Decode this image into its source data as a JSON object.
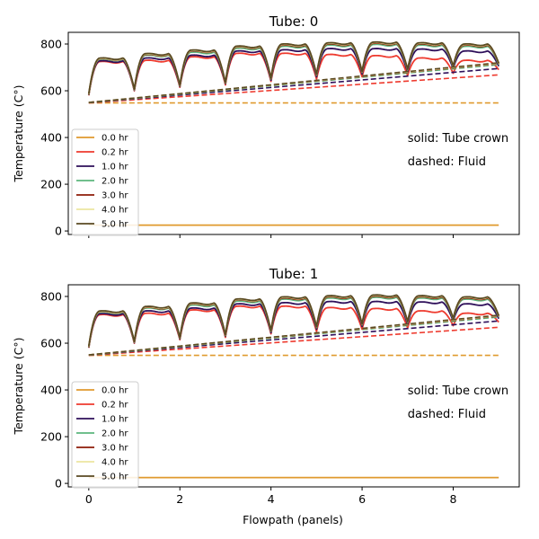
{
  "chart_data": [
    {
      "type": "line",
      "title": "Tube: 0",
      "xlabel": "",
      "ylabel": "Temperature (C°)",
      "xlim": [
        -0.45,
        9.45
      ],
      "ylim": [
        -15,
        850
      ],
      "xticks": [
        0,
        2,
        4,
        6,
        8
      ],
      "xticklabels": [
        "",
        "",
        "",
        "",
        ""
      ],
      "yticks": [
        0,
        200,
        400,
        600,
        800
      ],
      "yticklabels": [
        "0",
        "200",
        "400",
        "600",
        "800"
      ],
      "annotations": [
        "solid: Tube crown",
        "dashed: Fluid"
      ],
      "legend": "center-left",
      "grid": false,
      "series": [
        {
          "name": "0.0 hr",
          "color": "#e09a2e",
          "solid": {
            "x": [
              0,
              9
            ],
            "y": [
              25,
              25
            ]
          },
          "dashed": {
            "x": [
              0,
              9
            ],
            "y": [
              548,
              548
            ]
          }
        },
        {
          "name": "0.2 hr",
          "color": "#ee3a2e",
          "solid": {
            "peak": [
              725,
              730,
              745,
              760,
              760,
              755,
              750,
              740,
              730
            ],
            "trough": [
              600,
              615,
              625,
              640,
              650,
              660,
              665,
              675,
              690
            ],
            "start": 580
          },
          "dashed": {
            "x": [
              0,
              9
            ],
            "y": [
              548,
              668
            ]
          }
        },
        {
          "name": "1.0 hr",
          "color": "#2e0f5a",
          "solid": {
            "peak": [
              728,
              740,
              752,
              770,
              775,
              780,
              780,
              778,
              770
            ],
            "trough": [
              602,
              618,
              630,
              645,
              660,
              672,
              680,
              695,
              705
            ],
            "start": 582
          },
          "dashed": {
            "x": [
              0,
              9
            ],
            "y": [
              549,
              695
            ]
          }
        },
        {
          "name": "2.0 hr",
          "color": "#5bb67d",
          "solid": {
            "peak": [
              735,
              752,
              765,
              782,
              790,
              795,
              798,
              795,
              790
            ],
            "trough": [
              604,
              620,
              632,
              650,
              666,
              678,
              688,
              702,
              712
            ],
            "start": 583
          },
          "dashed": {
            "x": [
              0,
              9
            ],
            "y": [
              549,
              712
            ]
          }
        },
        {
          "name": "3.0 hr",
          "color": "#8e1c08",
          "solid": {
            "peak": [
              737,
              755,
              770,
              787,
              795,
              800,
              803,
              800,
              795
            ],
            "trough": [
              605,
              621,
              633,
              652,
              668,
              680,
              690,
              704,
              715
            ],
            "start": 584
          },
          "dashed": {
            "x": [
              0,
              9
            ],
            "y": [
              550,
              716
            ]
          }
        },
        {
          "name": "4.0 hr",
          "color": "#ece6a0",
          "solid": {
            "peak": [
              738,
              757,
              772,
              789,
              798,
              803,
              806,
              803,
              798
            ],
            "trough": [
              606,
              622,
              634,
              653,
              669,
              681,
              691,
              705,
              717
            ],
            "start": 585
          },
          "dashed": {
            "x": [
              0,
              9
            ],
            "y": [
              550,
              718
            ]
          }
        },
        {
          "name": "5.0 hr",
          "color": "#5a4a22",
          "solid": {
            "peak": [
              740,
              759,
              774,
              791,
              800,
              805,
              808,
              805,
              800
            ],
            "trough": [
              607,
              623,
              635,
              654,
              670,
              682,
              692,
              706,
              718
            ],
            "start": 586
          },
          "dashed": {
            "x": [
              0,
              9
            ],
            "y": [
              550,
              720
            ]
          }
        }
      ]
    },
    {
      "type": "line",
      "title": "Tube: 1",
      "xlabel": "Flowpath (panels)",
      "ylabel": "Temperature (C°)",
      "xlim": [
        -0.45,
        9.45
      ],
      "ylim": [
        -15,
        850
      ],
      "xticks": [
        0,
        2,
        4,
        6,
        8
      ],
      "xticklabels": [
        "0",
        "2",
        "4",
        "6",
        "8"
      ],
      "yticks": [
        0,
        200,
        400,
        600,
        800
      ],
      "yticklabels": [
        "0",
        "200",
        "400",
        "600",
        "800"
      ],
      "annotations": [
        "solid: Tube crown",
        "dashed: Fluid"
      ],
      "legend": "center-left",
      "grid": false,
      "series": [
        {
          "name": "0.0 hr",
          "color": "#e09a2e",
          "solid": {
            "x": [
              0,
              9
            ],
            "y": [
              25,
              25
            ]
          },
          "dashed": {
            "x": [
              0,
              9
            ],
            "y": [
              548,
              548
            ]
          }
        },
        {
          "name": "0.2 hr",
          "color": "#ee3a2e",
          "solid": {
            "peak": [
              722,
              728,
              742,
              758,
              758,
              752,
              748,
              738,
              728
            ],
            "trough": [
              600,
              615,
              625,
              640,
              650,
              660,
              665,
              675,
              690
            ],
            "start": 580
          },
          "dashed": {
            "x": [
              0,
              9
            ],
            "y": [
              548,
              668
            ]
          }
        },
        {
          "name": "1.0 hr",
          "color": "#2e0f5a",
          "solid": {
            "peak": [
              726,
              738,
              750,
              768,
              773,
              778,
              778,
              776,
              768
            ],
            "trough": [
              602,
              618,
              630,
              645,
              660,
              672,
              680,
              695,
              705
            ],
            "start": 582
          },
          "dashed": {
            "x": [
              0,
              9
            ],
            "y": [
              549,
              695
            ]
          }
        },
        {
          "name": "2.0 hr",
          "color": "#5bb67d",
          "solid": {
            "peak": [
              733,
              750,
              763,
              780,
              788,
              793,
              796,
              793,
              788
            ],
            "trough": [
              604,
              620,
              632,
              650,
              666,
              678,
              688,
              702,
              712
            ],
            "start": 583
          },
          "dashed": {
            "x": [
              0,
              9
            ],
            "y": [
              549,
              712
            ]
          }
        },
        {
          "name": "3.0 hr",
          "color": "#8e1c08",
          "solid": {
            "peak": [
              735,
              753,
              768,
              785,
              793,
              798,
              801,
              798,
              793
            ],
            "trough": [
              605,
              621,
              633,
              652,
              668,
              680,
              690,
              704,
              715
            ],
            "start": 584
          },
          "dashed": {
            "x": [
              0,
              9
            ],
            "y": [
              550,
              716
            ]
          }
        },
        {
          "name": "4.0 hr",
          "color": "#ece6a0",
          "solid": {
            "peak": [
              736,
              755,
              770,
              787,
              796,
              801,
              804,
              801,
              796
            ],
            "trough": [
              606,
              622,
              634,
              653,
              669,
              681,
              691,
              705,
              717
            ],
            "start": 585
          },
          "dashed": {
            "x": [
              0,
              9
            ],
            "y": [
              550,
              718
            ]
          }
        },
        {
          "name": "5.0 hr",
          "color": "#5a4a22",
          "solid": {
            "peak": [
              738,
              757,
              772,
              789,
              798,
              803,
              806,
              803,
              798
            ],
            "trough": [
              607,
              623,
              635,
              654,
              670,
              682,
              692,
              706,
              718
            ],
            "start": 586
          },
          "dashed": {
            "x": [
              0,
              9
            ],
            "y": [
              550,
              720
            ]
          }
        }
      ]
    }
  ]
}
